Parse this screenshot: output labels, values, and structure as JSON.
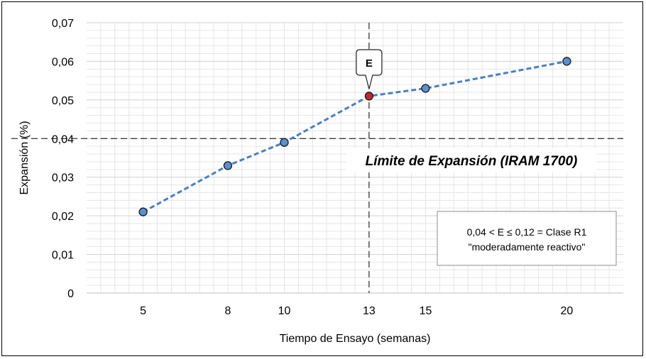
{
  "chart_data": {
    "type": "line",
    "title": "",
    "xlabel": "Tiempo de Ensayo (semanas)",
    "ylabel": "Expansión (%)",
    "x_ticks": [
      5,
      8,
      10,
      13,
      15,
      20
    ],
    "y_ticks": [
      "0",
      "0,01",
      "0,02",
      "0,03",
      "0,04",
      "0,05",
      "0,06",
      "0,07"
    ],
    "ylim": [
      0,
      0.07
    ],
    "grid": true,
    "series": [
      {
        "x": [
          5,
          8,
          10,
          13,
          15,
          20
        ],
        "y": [
          0.021,
          0.033,
          0.039,
          0.051,
          0.053,
          0.06
        ],
        "color": "#4a7fc1",
        "marker_color": "#5b8fd0",
        "line_style": "dashed"
      }
    ],
    "highlight_point": {
      "x": 13,
      "y": 0.051,
      "color": "#c0282c",
      "callout": "E"
    },
    "reference_lines": {
      "horizontal": {
        "y": 0.04,
        "label": "Límite de Expansión (IRAM 1700)"
      },
      "vertical": {
        "x": 13
      }
    },
    "annotation_box": {
      "line1": "0,04 < E ≤ 0,12 = Clase R1",
      "line2": "\"moderadamente reactivo\""
    }
  }
}
